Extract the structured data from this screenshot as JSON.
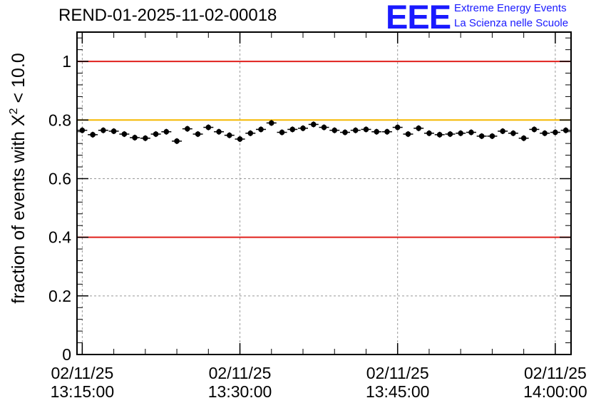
{
  "title": "REND-01-2025-11-02-00018",
  "logo": {
    "mark": "EEE",
    "line1": "Extreme Energy Events",
    "line2": "La Scienza nelle Scuole",
    "color": "#1a1aff"
  },
  "chart_data": {
    "type": "scatter",
    "title": "REND-01-2025-11-02-00018",
    "ylabel_prefix": "fraction of events with ",
    "ylabel_symbol": "X",
    "ylabel_sup": "2",
    "ylabel_suffix": " < 10.0",
    "xlabel": "",
    "ylim": [
      0,
      1.1
    ],
    "xlim_minutes": [
      -0.5,
      46.5
    ],
    "grid": true,
    "y_ticks": [
      {
        "value": 0,
        "label": "0"
      },
      {
        "value": 0.2,
        "label": "0.2"
      },
      {
        "value": 0.4,
        "label": "0.4"
      },
      {
        "value": 0.6,
        "label": "0.6"
      },
      {
        "value": 0.8,
        "label": "0.8"
      },
      {
        "value": 1.0,
        "label": "1"
      }
    ],
    "x_ticks": [
      {
        "minutes": 0,
        "date": "02/11/25",
        "time": "13:15:00"
      },
      {
        "minutes": 15,
        "date": "02/11/25",
        "time": "13:30:00"
      },
      {
        "minutes": 30,
        "date": "02/11/25",
        "time": "13:45:00"
      },
      {
        "minutes": 45,
        "date": "02/11/25",
        "time": "14:00:00"
      }
    ],
    "reference_lines": [
      {
        "y": 1.0,
        "color": "#e0201c"
      },
      {
        "y": 0.8,
        "color": "#f5b800"
      },
      {
        "y": 0.4,
        "color": "#e0201c"
      }
    ],
    "series": [
      {
        "name": "fraction",
        "color": "#000000",
        "x_minutes": [
          0,
          1,
          2,
          3,
          4,
          5,
          6,
          7,
          8,
          9,
          10,
          11,
          12,
          13,
          14,
          15,
          16,
          17,
          18,
          19,
          20,
          21,
          22,
          23,
          24,
          25,
          26,
          27,
          28,
          29,
          30,
          31,
          32,
          33,
          34,
          35,
          36,
          37,
          38,
          39,
          40,
          41,
          42,
          43,
          44,
          45,
          46
        ],
        "values": [
          0.765,
          0.75,
          0.765,
          0.762,
          0.752,
          0.74,
          0.738,
          0.752,
          0.76,
          0.728,
          0.77,
          0.752,
          0.775,
          0.76,
          0.748,
          0.735,
          0.755,
          0.768,
          0.79,
          0.758,
          0.768,
          0.772,
          0.785,
          0.775,
          0.765,
          0.758,
          0.765,
          0.768,
          0.76,
          0.76,
          0.775,
          0.752,
          0.772,
          0.755,
          0.75,
          0.752,
          0.755,
          0.758,
          0.745,
          0.745,
          0.762,
          0.755,
          0.738,
          0.768,
          0.755,
          0.758,
          0.765
        ],
        "error": 0.01
      }
    ]
  }
}
